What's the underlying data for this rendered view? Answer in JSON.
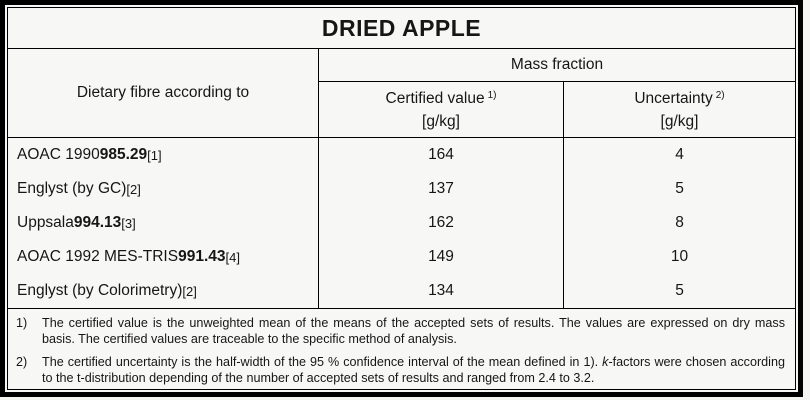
{
  "title": "DRIED APPLE",
  "colors": {
    "border": "#000000",
    "text": "#161616",
    "background": "#f7f7f6"
  },
  "table": {
    "row_header": "Dietary fibre according to",
    "group_header": "Mass fraction",
    "columns": [
      {
        "label": "Certified value",
        "footnote_ref": "1)",
        "unit": "[g/kg]"
      },
      {
        "label": "Uncertainty",
        "footnote_ref": "2)",
        "unit": "[g/kg]"
      }
    ],
    "rows": [
      {
        "pre": "AOAC 1990 ",
        "bold": "985.29",
        "ref": " [1]",
        "certified_value": "164",
        "uncertainty": "4"
      },
      {
        "pre": "Englyst (by GC) ",
        "bold": "",
        "ref": " [2]",
        "certified_value": "137",
        "uncertainty": "5"
      },
      {
        "pre": "Uppsala ",
        "bold": "994.13",
        "ref": " [3]",
        "certified_value": "162",
        "uncertainty": "8"
      },
      {
        "pre": "AOAC 1992 MES-TRIS ",
        "bold": "991.43",
        "ref": " [4]",
        "certified_value": "149",
        "uncertainty": "10"
      },
      {
        "pre": "Englyst (by Colorimetry) ",
        "bold": "",
        "ref": " [2]",
        "certified_value": "134",
        "uncertainty": "5"
      }
    ]
  },
  "footnotes": [
    {
      "label": "1)",
      "text": "The certified value is the unweighted mean of the means of the accepted sets of results. The values are expressed on dry mass basis. The certified values are traceable to the specific method of analysis."
    },
    {
      "label": "2)",
      "text_before_italic": "The certified uncertainty is the half-width of the 95 % confidence interval of the mean defined in 1). ",
      "italic": "k",
      "text_after_italic": "-factors were chosen according to the t-distribution depending of the number of accepted sets of results and ranged from 2.4 to 3.2."
    }
  ]
}
